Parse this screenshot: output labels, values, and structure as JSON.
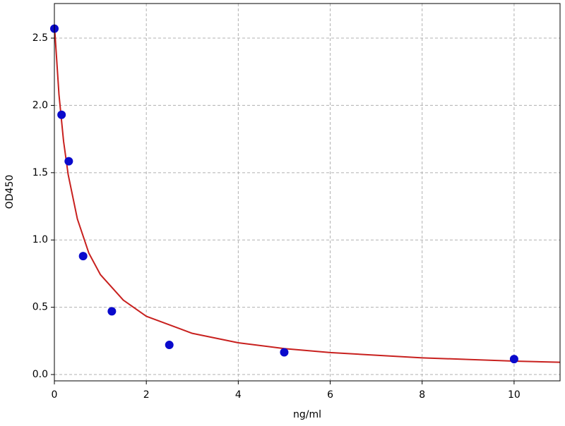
{
  "chart_data": {
    "type": "scatter",
    "x_label": "ng/ml",
    "y_label": "OD450",
    "xlim": [
      0,
      11
    ],
    "ylim": [
      -0.047,
      2.757
    ],
    "xticks": [
      0,
      2,
      4,
      6,
      8,
      10
    ],
    "yticks": [
      {
        "value": 0,
        "label": "0.0"
      },
      {
        "value": 0.5,
        "label": "0.5"
      },
      {
        "value": 1,
        "label": "1.0"
      },
      {
        "value": 1.5,
        "label": "1.5"
      },
      {
        "value": 2,
        "label": "2.0"
      },
      {
        "value": 2.5,
        "label": "2.5"
      }
    ],
    "grid": true,
    "series": [
      {
        "type": "line",
        "color": "#c8201e",
        "x": [
          0,
          0.1,
          0.2,
          0.3,
          0.5,
          0.75,
          1,
          1.5,
          2,
          3,
          4,
          5,
          6,
          8,
          10,
          11
        ],
        "values": [
          2.6,
          2.08,
          1.733,
          1.486,
          1.156,
          0.902,
          0.743,
          0.553,
          0.433,
          0.306,
          0.236,
          0.193,
          0.163,
          0.124,
          0.1,
          0.091
        ]
      },
      {
        "type": "scatter",
        "color": "#0a0acc",
        "x": [
          0,
          0.156,
          0.3125,
          0.625,
          1.25,
          2.5,
          5,
          10
        ],
        "values": [
          2.57,
          1.93,
          1.585,
          0.88,
          0.47,
          0.22,
          0.165,
          0.115
        ]
      }
    ]
  }
}
